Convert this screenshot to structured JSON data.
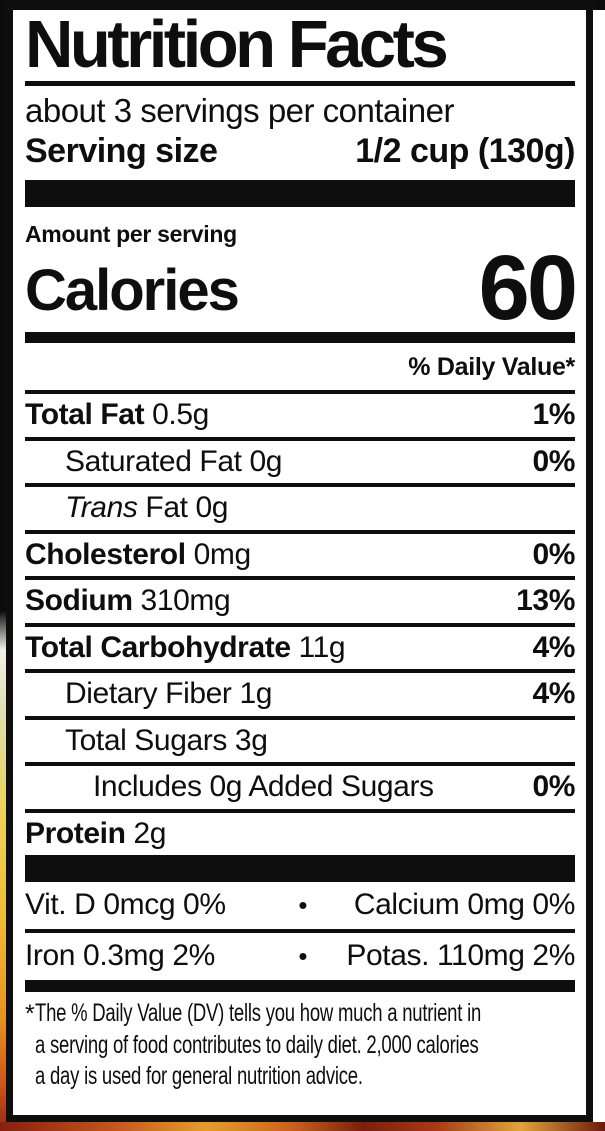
{
  "label": {
    "title": "Nutrition Facts",
    "servings_per_container": "about 3 servings per container",
    "serving_size_label": "Serving size",
    "serving_size_value": "1/2 cup (130g)",
    "amount_per_serving": "Amount per serving",
    "calories_label": "Calories",
    "calories_value": "60",
    "daily_value_header": "% Daily Value*",
    "rows": [
      {
        "name": "Total Fat",
        "bold_name": true,
        "amount": "0.5g",
        "dv": "1%",
        "indent": 0
      },
      {
        "name": "Saturated Fat",
        "bold_name": false,
        "amount": "0g",
        "dv": "0%",
        "indent": 1
      },
      {
        "italic_prefix": "Trans",
        "name": "Fat",
        "bold_name": false,
        "amount": "0g",
        "dv": "",
        "indent": 1
      },
      {
        "name": "Cholesterol",
        "bold_name": true,
        "amount": "0mg",
        "dv": "0%",
        "indent": 0
      },
      {
        "name": "Sodium",
        "bold_name": true,
        "amount": "310mg",
        "dv": "13%",
        "indent": 0
      },
      {
        "name": "Total Carbohydrate",
        "bold_name": true,
        "amount": "11g",
        "dv": "4%",
        "indent": 0
      },
      {
        "name": "Dietary Fiber",
        "bold_name": false,
        "amount": "1g",
        "dv": "4%",
        "indent": 1
      },
      {
        "name": "Total Sugars",
        "bold_name": false,
        "amount": "3g",
        "dv": "",
        "indent": 1
      },
      {
        "name": "Includes 0g Added Sugars",
        "bold_name": false,
        "amount": "",
        "dv": "0%",
        "indent": 2
      },
      {
        "name": "Protein",
        "bold_name": true,
        "amount": "2g",
        "dv": "",
        "indent": 0
      }
    ],
    "bullet": "•",
    "micronutrients": [
      {
        "left": "Vit. D 0mcg 0%",
        "right": "Calcium 0mg 0%"
      },
      {
        "left": "Iron 0.3mg 2%",
        "right": "Potas. 110mg 2%"
      }
    ],
    "footnote_marker": "*",
    "footnote_lines": [
      "The % Daily Value (DV) tells you how much a nutrient in",
      "a serving of food contributes to daily diet. 2,000 calories",
      "a day is used for general nutrition advice."
    ]
  },
  "colors": {
    "label_ink": "#0e0e0e",
    "label_background": "#ffffff",
    "photo_strip_yellow": "#edd157",
    "photo_strip_orange": "#e8921f",
    "photo_strip_red": "#8f2a12"
  }
}
